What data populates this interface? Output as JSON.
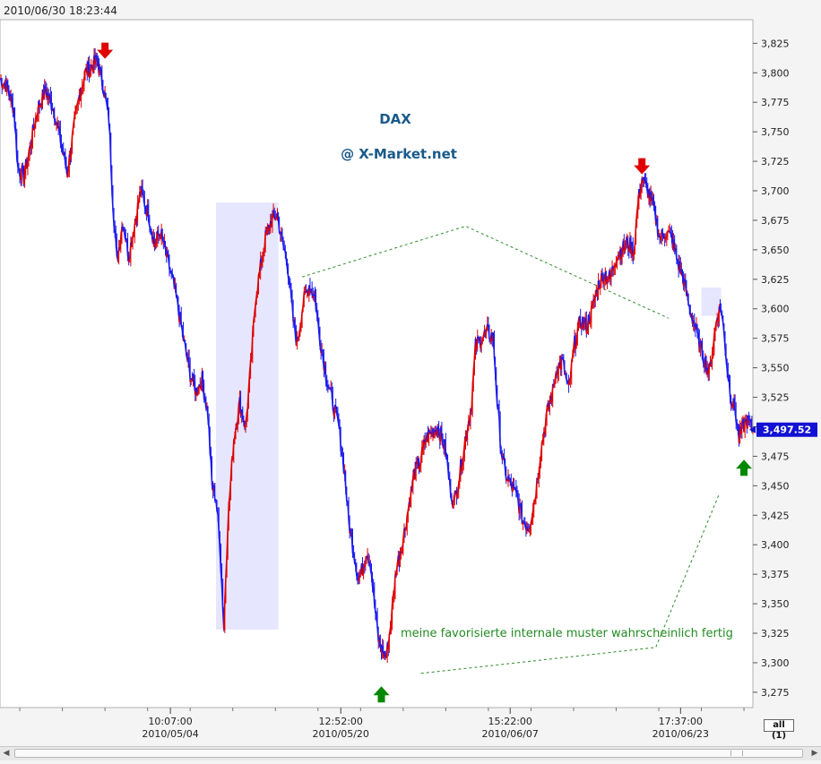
{
  "header": {
    "timestamp": "2010/06/30 18:23:44"
  },
  "controls": {
    "zoom_all_label": "all (1)"
  },
  "chart_data": {
    "type": "line",
    "title": "DAX",
    "subtitle": "@ X-Market.net",
    "annotation": "meine favorisierte internale muster wahrscheinlich fertig",
    "last_value_label": "3,497.52",
    "last_value": 3497.52,
    "ylim": [
      3262,
      3845
    ],
    "y_ticks": [
      3275,
      3300,
      3325,
      3350,
      3375,
      3400,
      3425,
      3450,
      3475,
      3500,
      3525,
      3550,
      3575,
      3600,
      3625,
      3650,
      3675,
      3700,
      3725,
      3750,
      3775,
      3800,
      3825
    ],
    "y_tick_labels": [
      "3,275",
      "3,300",
      "3,325",
      "3,350",
      "3,375",
      "3,400",
      "3,425",
      "3,450",
      "3,475",
      "3,500",
      "3,525",
      "3,550",
      "3,575",
      "3,600",
      "3,625",
      "3,650",
      "3,675",
      "3,700",
      "3,725",
      "3,750",
      "3,775",
      "3,800",
      "3,825"
    ],
    "x_tick_labels": [
      {
        "time": "10:07:00",
        "date": "2010/05/04",
        "index": 172
      },
      {
        "time": "12:52:00",
        "date": "2010/05/20",
        "index": 344
      },
      {
        "time": "15:22:00",
        "date": "2010/06/07",
        "index": 515
      },
      {
        "time": "17:37:00",
        "date": "2010/06/23",
        "index": 687
      }
    ],
    "series": [
      {
        "anchors": [
          [
            0,
            3795
          ],
          [
            6,
            3790
          ],
          [
            14,
            3770
          ],
          [
            18,
            3720
          ],
          [
            24,
            3712
          ],
          [
            30,
            3735
          ],
          [
            38,
            3770
          ],
          [
            46,
            3785
          ],
          [
            54,
            3770
          ],
          [
            62,
            3740
          ],
          [
            68,
            3715
          ],
          [
            74,
            3750
          ],
          [
            80,
            3780
          ],
          [
            86,
            3800
          ],
          [
            92,
            3805
          ],
          [
            98,
            3810
          ],
          [
            104,
            3790
          ],
          [
            110,
            3760
          ],
          [
            114,
            3690
          ],
          [
            118,
            3640
          ],
          [
            124,
            3675
          ],
          [
            130,
            3645
          ],
          [
            136,
            3672
          ],
          [
            142,
            3700
          ],
          [
            150,
            3680
          ],
          [
            156,
            3655
          ],
          [
            162,
            3665
          ],
          [
            168,
            3645
          ],
          [
            174,
            3625
          ],
          [
            180,
            3600
          ],
          [
            186,
            3570
          ],
          [
            192,
            3545
          ],
          [
            198,
            3530
          ],
          [
            204,
            3540
          ],
          [
            210,
            3510
          ],
          [
            214,
            3450
          ],
          [
            218,
            3440
          ],
          [
            222,
            3400
          ],
          [
            226,
            3330
          ],
          [
            230,
            3420
          ],
          [
            236,
            3490
          ],
          [
            242,
            3520
          ],
          [
            248,
            3500
          ],
          [
            254,
            3560
          ],
          [
            258,
            3610
          ],
          [
            264,
            3640
          ],
          [
            268,
            3660
          ],
          [
            274,
            3675
          ],
          [
            280,
            3680
          ],
          [
            284,
            3660
          ],
          [
            290,
            3640
          ],
          [
            296,
            3590
          ],
          [
            300,
            3570
          ],
          [
            306,
            3605
          ],
          [
            312,
            3620
          ],
          [
            318,
            3610
          ],
          [
            322,
            3580
          ],
          [
            326,
            3560
          ],
          [
            330,
            3540
          ],
          [
            336,
            3520
          ],
          [
            342,
            3500
          ],
          [
            348,
            3460
          ],
          [
            352,
            3420
          ],
          [
            356,
            3400
          ],
          [
            362,
            3370
          ],
          [
            366,
            3380
          ],
          [
            370,
            3395
          ],
          [
            374,
            3385
          ],
          [
            378,
            3350
          ],
          [
            382,
            3320
          ],
          [
            386,
            3310
          ],
          [
            390,
            3305
          ],
          [
            394,
            3330
          ],
          [
            400,
            3380
          ],
          [
            406,
            3400
          ],
          [
            410,
            3420
          ],
          [
            414,
            3440
          ],
          [
            418,
            3460
          ],
          [
            424,
            3470
          ],
          [
            430,
            3490
          ],
          [
            436,
            3495
          ],
          [
            442,
            3500
          ],
          [
            446,
            3490
          ],
          [
            450,
            3480
          ],
          [
            454,
            3450
          ],
          [
            458,
            3435
          ],
          [
            464,
            3460
          ],
          [
            470,
            3490
          ],
          [
            476,
            3520
          ],
          [
            480,
            3568
          ],
          [
            486,
            3575
          ],
          [
            492,
            3580
          ],
          [
            498,
            3575
          ],
          [
            502,
            3520
          ],
          [
            506,
            3480
          ],
          [
            510,
            3460
          ],
          [
            516,
            3450
          ],
          [
            522,
            3440
          ],
          [
            528,
            3420
          ],
          [
            534,
            3415
          ],
          [
            540,
            3440
          ],
          [
            546,
            3480
          ],
          [
            552,
            3510
          ],
          [
            558,
            3530
          ],
          [
            562,
            3550
          ],
          [
            568,
            3555
          ],
          [
            574,
            3530
          ],
          [
            580,
            3570
          ],
          [
            586,
            3590
          ],
          [
            592,
            3585
          ],
          [
            598,
            3600
          ],
          [
            604,
            3620
          ],
          [
            610,
            3630
          ],
          [
            616,
            3625
          ],
          [
            622,
            3645
          ],
          [
            628,
            3650
          ],
          [
            634,
            3655
          ],
          [
            640,
            3650
          ],
          [
            644,
            3690
          ],
          [
            648,
            3710
          ],
          [
            654,
            3700
          ],
          [
            660,
            3685
          ],
          [
            666,
            3660
          ],
          [
            672,
            3665
          ],
          [
            678,
            3660
          ],
          [
            684,
            3640
          ],
          [
            690,
            3625
          ],
          [
            696,
            3600
          ],
          [
            700,
            3590
          ],
          [
            706,
            3570
          ],
          [
            712,
            3555
          ],
          [
            716,
            3545
          ],
          [
            720,
            3570
          ],
          [
            724,
            3595
          ],
          [
            728,
            3600
          ],
          [
            732,
            3570
          ],
          [
            734,
            3550
          ],
          [
            738,
            3525
          ],
          [
            742,
            3515
          ],
          [
            746,
            3490
          ],
          [
            750,
            3500
          ],
          [
            754,
            3505
          ],
          [
            758,
            3500
          ],
          [
            760,
            3497.52
          ]
        ]
      }
    ],
    "markers": [
      {
        "type": "down-arrow",
        "color": "#e00000",
        "index": 106,
        "value": 3818
      },
      {
        "type": "up-arrow",
        "color": "#008800",
        "index": 385,
        "value": 3274
      },
      {
        "type": "down-arrow",
        "color": "#e00000",
        "index": 648,
        "value": 3720
      },
      {
        "type": "up-arrow",
        "color": "#008800",
        "index": 751,
        "value": 3466
      }
    ],
    "colors": {
      "up": "#e00000",
      "down": "#1a1aee",
      "annotation": "#228b22",
      "title": "#1a5a8a",
      "highlight": "#e6e6ff",
      "last_value_badge": "#1212d4"
    },
    "grid": false
  }
}
